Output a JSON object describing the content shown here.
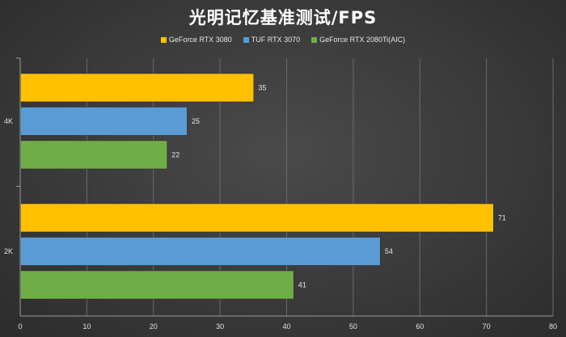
{
  "chart_data": {
    "type": "bar",
    "orientation": "horizontal",
    "title": "光明记忆基准测试/FPS",
    "categories": [
      "4K",
      "2K"
    ],
    "series": [
      {
        "name": "GeForce RTX 3080",
        "color": "#ffc000",
        "values": [
          35,
          71
        ]
      },
      {
        "name": "TUF RTX 3070",
        "color": "#5b9bd5",
        "values": [
          25,
          54
        ]
      },
      {
        "name": "GeForce RTX 2080Ti(AIC)",
        "color": "#70ad47",
        "values": [
          22,
          41
        ]
      }
    ],
    "xlim": [
      0,
      80
    ],
    "xticks": [
      0,
      10,
      20,
      30,
      40,
      50,
      60,
      70,
      80
    ],
    "grid": true,
    "legend_position": "top"
  }
}
